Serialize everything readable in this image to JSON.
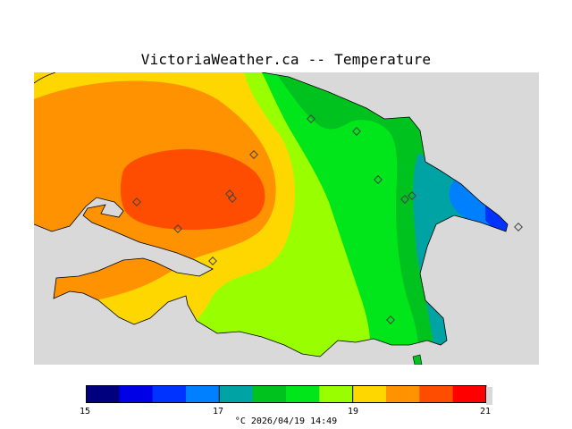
{
  "title": "VictoriaWeather.ca -- Temperature",
  "colors": {
    "land_bg": "#d9d9d9",
    "bands": [
      "#00007f",
      "#0000e6",
      "#0033ff",
      "#007fff",
      "#00a3a3",
      "#00c21f",
      "#00e61a",
      "#99ff00",
      "#ffd700",
      "#ff9200",
      "#ff4d00",
      "#ff0000"
    ]
  },
  "legend": {
    "min": 15,
    "max": 21,
    "ticks": [
      {
        "value": 15,
        "label": "15"
      },
      {
        "value": 17,
        "label": "17"
      },
      {
        "value": 19,
        "label": "19"
      },
      {
        "value": 21,
        "label": "21"
      }
    ]
  },
  "footer": {
    "unit": "°C",
    "timestamp": "2026/04/19 14:49"
  },
  "stations": [
    {
      "id": "s1"
    },
    {
      "id": "s2"
    },
    {
      "id": "s3"
    },
    {
      "id": "s4"
    },
    {
      "id": "s5"
    },
    {
      "id": "s6"
    },
    {
      "id": "s7"
    },
    {
      "id": "s8"
    },
    {
      "id": "s9"
    },
    {
      "id": "s10"
    },
    {
      "id": "s11"
    },
    {
      "id": "s12"
    },
    {
      "id": "s13"
    }
  ]
}
